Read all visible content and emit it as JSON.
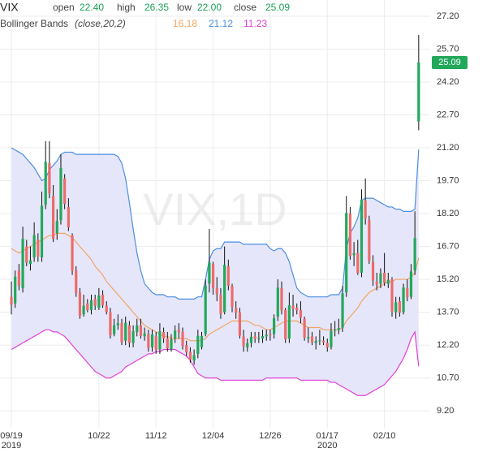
{
  "chart_data": {
    "type": "candlestick",
    "title": "VIX",
    "watermark": "VIX,1D",
    "header": {
      "symbol": "VIX",
      "value_color": "#1a9f56",
      "fields": [
        {
          "label": "open",
          "value": "22.40"
        },
        {
          "label": "high",
          "value": "26.35"
        },
        {
          "label": "low",
          "value": "22.00"
        },
        {
          "label": "close",
          "value": "25.09"
        }
      ]
    },
    "categories": [
      "09/19",
      null,
      null,
      null,
      null,
      null,
      null,
      null,
      null,
      null,
      null,
      null,
      null,
      null,
      null,
      null,
      null,
      null,
      null,
      null,
      null,
      null,
      null,
      "10/22",
      null,
      null,
      null,
      null,
      null,
      null,
      null,
      null,
      null,
      null,
      null,
      null,
      null,
      null,
      "11/12",
      null,
      null,
      null,
      null,
      null,
      null,
      null,
      null,
      null,
      null,
      null,
      null,
      null,
      null,
      "12/04",
      null,
      null,
      null,
      null,
      null,
      null,
      null,
      null,
      null,
      null,
      null,
      null,
      null,
      null,
      "12/26",
      null,
      null,
      null,
      null,
      null,
      null,
      null,
      null,
      null,
      null,
      null,
      null,
      null,
      null,
      "01/17",
      null,
      null,
      null,
      null,
      null,
      null,
      null,
      null,
      null,
      null,
      null,
      null,
      null,
      null,
      "02/10",
      null,
      null,
      null,
      null,
      null,
      null,
      null,
      null,
      null
    ],
    "year_marks": [
      {
        "at": "09/19",
        "label": "2019"
      },
      {
        "at": "01/17",
        "label": "2020"
      }
    ],
    "series": [
      {
        "name": "VIX",
        "up_color": "#22a85a",
        "down_color": "#ec6b6b",
        "open": [
          14.4,
          14.1,
          15.6,
          14.8,
          16.7,
          15.9,
          16.2,
          17.0,
          16.2,
          18.6,
          20.5,
          19.0,
          17.3,
          17.9,
          19.8,
          18.5,
          17.2,
          15.6,
          14.6,
          13.6,
          14.1,
          13.8,
          14.3,
          13.9,
          14.5,
          14.0,
          13.7,
          12.7,
          13.1,
          13.2,
          12.4,
          13.1,
          12.3,
          12.8,
          13.1,
          12.6,
          12.7,
          12.1,
          12.6,
          12.0,
          12.8,
          12.5,
          12.0,
          12.5,
          12.9,
          12.8,
          12.2,
          11.9,
          11.5,
          11.8,
          12.1,
          12.7,
          15.0,
          15.9,
          14.8,
          14.5,
          13.7,
          15.8,
          14.9,
          13.9,
          13.7,
          12.6,
          12.1,
          12.3,
          12.6,
          12.5,
          12.5,
          12.6,
          12.7,
          12.7,
          13.5,
          14.8,
          13.8,
          12.5,
          14.0,
          13.9,
          13.8,
          13.4,
          12.5,
          12.6,
          12.3,
          12.4,
          12.4,
          12.3,
          12.1,
          12.9,
          12.9,
          13.0,
          14.6,
          18.2,
          16.3,
          16.4,
          15.5,
          18.8,
          17.9,
          16.0,
          15.1,
          15.0,
          15.5,
          15.0,
          15.2,
          13.7,
          14.2,
          13.7,
          14.8,
          14.4,
          15.6,
          22.4
        ],
        "high": [
          15.1,
          15.6,
          15.9,
          17.6,
          17.0,
          16.7,
          17.8,
          17.3,
          19.2,
          21.5,
          21.5,
          19.5,
          18.4,
          20.9,
          20.0,
          18.9,
          17.3,
          15.8,
          14.8,
          14.5,
          14.3,
          14.5,
          14.5,
          14.8,
          14.7,
          14.2,
          13.9,
          13.4,
          13.6,
          13.4,
          13.5,
          13.3,
          13.1,
          13.4,
          13.4,
          13.0,
          12.9,
          12.9,
          12.8,
          13.2,
          13.0,
          12.8,
          12.7,
          13.1,
          13.2,
          13.0,
          12.4,
          12.1,
          12.0,
          12.9,
          12.8,
          15.2,
          17.5,
          16.0,
          15.3,
          14.8,
          16.7,
          16.1,
          15.0,
          14.2,
          13.9,
          12.9,
          12.5,
          12.8,
          12.8,
          12.8,
          12.9,
          12.9,
          12.9,
          13.6,
          15.2,
          15.1,
          13.9,
          14.6,
          14.5,
          14.1,
          14.2,
          13.5,
          13.0,
          12.8,
          12.6,
          12.9,
          12.6,
          12.5,
          13.2,
          13.3,
          13.4,
          14.9,
          19.0,
          18.5,
          16.9,
          17.0,
          19.3,
          19.8,
          18.1,
          16.3,
          15.5,
          15.7,
          16.4,
          15.5,
          15.3,
          14.4,
          14.4,
          15.0,
          15.2,
          15.9,
          18.3,
          26.35
        ],
        "low": [
          13.6,
          13.9,
          14.7,
          14.6,
          15.8,
          15.6,
          16.0,
          16.0,
          16.0,
          18.4,
          18.9,
          16.9,
          17.0,
          17.7,
          18.4,
          17.4,
          15.4,
          14.4,
          13.4,
          13.5,
          13.7,
          13.6,
          13.8,
          13.8,
          13.9,
          13.6,
          12.5,
          12.6,
          12.9,
          12.2,
          12.2,
          12.1,
          12.1,
          12.6,
          12.5,
          12.4,
          11.9,
          11.9,
          11.8,
          11.8,
          12.3,
          11.9,
          11.9,
          12.3,
          12.5,
          12.0,
          11.7,
          11.4,
          11.3,
          11.6,
          12.0,
          12.6,
          14.6,
          14.5,
          14.2,
          13.4,
          13.6,
          14.7,
          13.7,
          13.4,
          12.5,
          11.9,
          11.9,
          12.1,
          12.3,
          12.3,
          12.3,
          12.4,
          12.4,
          12.5,
          13.3,
          13.6,
          12.3,
          12.3,
          13.5,
          13.6,
          13.2,
          12.4,
          12.3,
          12.2,
          12.0,
          12.2,
          12.2,
          11.9,
          12.0,
          12.6,
          12.7,
          12.8,
          14.4,
          16.1,
          15.8,
          15.4,
          15.3,
          17.7,
          15.9,
          14.9,
          14.7,
          14.8,
          14.9,
          14.8,
          13.5,
          13.4,
          13.5,
          13.6,
          14.2,
          14.3,
          15.4,
          22.0
        ],
        "close": [
          14.05,
          15.32,
          14.91,
          17.05,
          15.96,
          16.07,
          17.22,
          16.24,
          18.56,
          20.56,
          19.12,
          17.04,
          17.86,
          20.28,
          18.64,
          17.57,
          15.58,
          14.57,
          13.54,
          14.0,
          13.79,
          14.25,
          14.0,
          14.46,
          14.01,
          13.71,
          12.65,
          13.11,
          13.2,
          12.33,
          13.22,
          12.3,
          12.83,
          13.1,
          12.62,
          12.73,
          12.07,
          12.69,
          11.99,
          12.83,
          12.51,
          12.05,
          12.46,
          12.86,
          12.78,
          12.16,
          11.87,
          11.54,
          11.74,
          12.62,
          12.62,
          14.91,
          15.96,
          14.8,
          14.52,
          13.62,
          15.86,
          14.91,
          13.94,
          13.68,
          12.63,
          12.14,
          12.29,
          12.58,
          12.5,
          12.51,
          12.61,
          12.67,
          12.65,
          13.43,
          14.82,
          13.78,
          12.47,
          14.02,
          13.85,
          13.79,
          13.45,
          12.54,
          12.56,
          12.32,
          12.39,
          12.42,
          12.32,
          12.1,
          12.85,
          12.91,
          12.98,
          14.56,
          18.23,
          16.28,
          16.39,
          15.49,
          18.84,
          17.97,
          16.05,
          15.15,
          14.96,
          15.47,
          15.04,
          15.18,
          13.74,
          14.15,
          13.68,
          14.83,
          14.38,
          15.56,
          17.08,
          25.09
        ],
        "last_label": "25.09"
      }
    ],
    "overlay": {
      "name": "Bollinger Bands",
      "params": "(close,20,2)",
      "fill": "#e6e6fa",
      "lines": [
        {
          "color": "#f0a464",
          "value_label": "16.18",
          "values": [
            16.6,
            16.5,
            16.4,
            16.5,
            16.6,
            16.7,
            16.8,
            16.9,
            17.0,
            17.1,
            17.2,
            17.2,
            17.3,
            17.3,
            17.3,
            17.2,
            17.1,
            16.9,
            16.7,
            16.5,
            16.3,
            16.1,
            15.8,
            15.6,
            15.4,
            15.1,
            14.9,
            14.7,
            14.5,
            14.3,
            14.1,
            13.9,
            13.7,
            13.5,
            13.3,
            13.1,
            13.0,
            12.9,
            12.8,
            12.7,
            12.6,
            12.6,
            12.5,
            12.5,
            12.5,
            12.5,
            12.5,
            12.4,
            12.4,
            12.4,
            12.4,
            12.5,
            12.7,
            12.8,
            12.9,
            13.0,
            13.1,
            13.2,
            13.3,
            13.3,
            13.3,
            13.3,
            13.3,
            13.2,
            13.1,
            13.1,
            13.0,
            12.9,
            12.9,
            13.0,
            13.1,
            13.2,
            13.3,
            13.3,
            13.3,
            13.3,
            13.2,
            13.1,
            13.0,
            13.0,
            13.0,
            13.0,
            12.9,
            12.9,
            12.9,
            12.9,
            12.9,
            13.0,
            13.3,
            13.5,
            13.7,
            13.9,
            14.2,
            14.4,
            14.6,
            14.7,
            14.8,
            14.9,
            15.0,
            15.1,
            15.1,
            15.2,
            15.2,
            15.2,
            15.2,
            15.3,
            15.5,
            16.18
          ]
        },
        {
          "color": "#4a8fe0",
          "value_label": "21.12",
          "values": [
            21.2,
            21.1,
            21.0,
            20.9,
            20.7,
            20.5,
            20.3,
            20.0,
            19.7,
            19.8,
            20.2,
            20.4,
            20.6,
            20.9,
            21.0,
            21.0,
            21.0,
            20.9,
            20.9,
            20.9,
            20.9,
            20.9,
            20.9,
            20.9,
            20.9,
            20.9,
            20.9,
            20.9,
            20.8,
            20.5,
            19.8,
            18.7,
            17.5,
            16.4,
            15.6,
            15.0,
            14.8,
            14.6,
            14.5,
            14.5,
            14.5,
            14.4,
            14.4,
            14.4,
            14.3,
            14.3,
            14.3,
            14.3,
            14.3,
            14.4,
            14.4,
            15.2,
            16.1,
            16.5,
            16.6,
            16.6,
            16.9,
            16.9,
            16.9,
            16.9,
            16.9,
            16.8,
            16.8,
            16.8,
            16.8,
            16.8,
            16.8,
            16.8,
            16.6,
            16.5,
            16.6,
            16.6,
            16.4,
            16.0,
            15.4,
            14.8,
            14.6,
            14.5,
            14.4,
            14.4,
            14.4,
            14.4,
            14.4,
            14.4,
            14.5,
            14.5,
            14.5,
            14.8,
            16.6,
            17.3,
            17.6,
            18.0,
            18.8,
            18.9,
            18.9,
            18.9,
            18.8,
            18.7,
            18.6,
            18.5,
            18.5,
            18.4,
            18.4,
            18.3,
            18.3,
            18.3,
            18.4,
            21.12
          ]
        },
        {
          "color": "#e040d8",
          "value_label": "11.23",
          "values": [
            12.0,
            12.1,
            12.2,
            12.3,
            12.4,
            12.5,
            12.6,
            12.7,
            12.8,
            12.9,
            12.9,
            12.8,
            12.8,
            12.7,
            12.6,
            12.4,
            12.2,
            12.0,
            11.8,
            11.6,
            11.4,
            11.2,
            11.0,
            10.9,
            10.8,
            10.7,
            10.7,
            10.8,
            10.9,
            11.0,
            11.2,
            11.3,
            11.4,
            11.5,
            11.6,
            11.7,
            11.8,
            11.8,
            11.9,
            11.9,
            12.0,
            12.0,
            12.0,
            12.0,
            11.9,
            11.8,
            11.7,
            11.5,
            11.2,
            10.9,
            10.8,
            10.7,
            10.7,
            10.7,
            10.7,
            10.6,
            10.6,
            10.6,
            10.6,
            10.6,
            10.6,
            10.6,
            10.6,
            10.6,
            10.6,
            10.6,
            10.6,
            10.7,
            10.7,
            10.7,
            10.7,
            10.7,
            10.7,
            10.7,
            10.7,
            10.7,
            10.6,
            10.6,
            10.6,
            10.6,
            10.6,
            10.6,
            10.6,
            10.6,
            10.5,
            10.5,
            10.4,
            10.3,
            10.2,
            10.1,
            10.0,
            9.9,
            9.9,
            9.9,
            10.0,
            10.1,
            10.2,
            10.3,
            10.4,
            10.6,
            10.8,
            11.0,
            11.3,
            11.6,
            12.0,
            12.5,
            12.8,
            11.23
          ]
        }
      ]
    },
    "ylim": [
      8.39,
      27.94
    ],
    "yticks": [
      {
        "value": 27.2,
        "label": "27.20"
      },
      {
        "value": 25.7,
        "label": "25.70"
      },
      {
        "value": 24.2,
        "label": "24.20"
      },
      {
        "value": 22.7,
        "label": "22.70"
      },
      {
        "value": 21.2,
        "label": "21.20"
      },
      {
        "value": 19.7,
        "label": "19.70"
      },
      {
        "value": 18.2,
        "label": "18.20"
      },
      {
        "value": 16.7,
        "label": "16.70"
      },
      {
        "value": 15.2,
        "label": "15.20"
      },
      {
        "value": 13.7,
        "label": "13.70"
      },
      {
        "value": 12.2,
        "label": "12.20"
      },
      {
        "value": 10.7,
        "label": "10.70"
      },
      {
        "value": 9.2,
        "label": "9.20"
      }
    ],
    "grid": true,
    "axis_side": "right"
  }
}
